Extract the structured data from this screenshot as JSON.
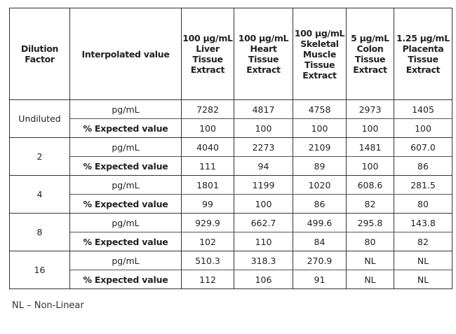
{
  "table": {
    "headers": [
      "Dilution Factor",
      "Interpolated value",
      "100 µg/mL Liver Tissue Extract",
      "100 µg/mL Heart Tissue Extract",
      "100 µg/mL Skeletal Muscle Tissue Extract",
      "5 µg/mL Colon Tissue Extract",
      "1.25 µg/mL Placenta Tissue Extract"
    ],
    "row_labels": {
      "conc": "pg/mL",
      "pct": "% Expected value"
    },
    "groups": [
      {
        "dilution": "Undiluted",
        "conc": [
          "7282",
          "4817",
          "4758",
          "2973",
          "1405"
        ],
        "pct": [
          "100",
          "100",
          "100",
          "100",
          "100"
        ]
      },
      {
        "dilution": "2",
        "conc": [
          "4040",
          "2273",
          "2109",
          "1481",
          "607.0"
        ],
        "pct": [
          "111",
          "94",
          "89",
          "100",
          "86"
        ]
      },
      {
        "dilution": "4",
        "conc": [
          "1801",
          "1199",
          "1020",
          "608.6",
          "281.5"
        ],
        "pct": [
          "99",
          "100",
          "86",
          "82",
          "80"
        ]
      },
      {
        "dilution": "8",
        "conc": [
          "929.9",
          "662.7",
          "499.6",
          "295.8",
          "143.8"
        ],
        "pct": [
          "102",
          "110",
          "84",
          "80",
          "82"
        ]
      },
      {
        "dilution": "16",
        "conc": [
          "510.3",
          "318.3",
          "270.9",
          "NL",
          "NL"
        ],
        "pct": [
          "112",
          "106",
          "91",
          "NL",
          "NL"
        ]
      }
    ]
  },
  "footnote": "NL – Non-Linear"
}
